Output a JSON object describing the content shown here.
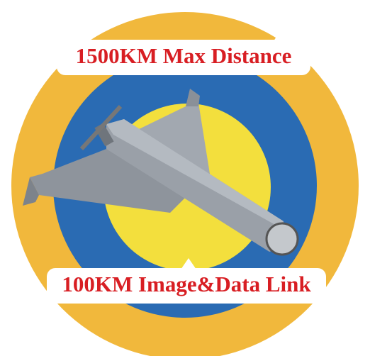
{
  "labels": {
    "top": "1500KM Max Distance",
    "bottom": "100KM Image&Data Link"
  }
}
